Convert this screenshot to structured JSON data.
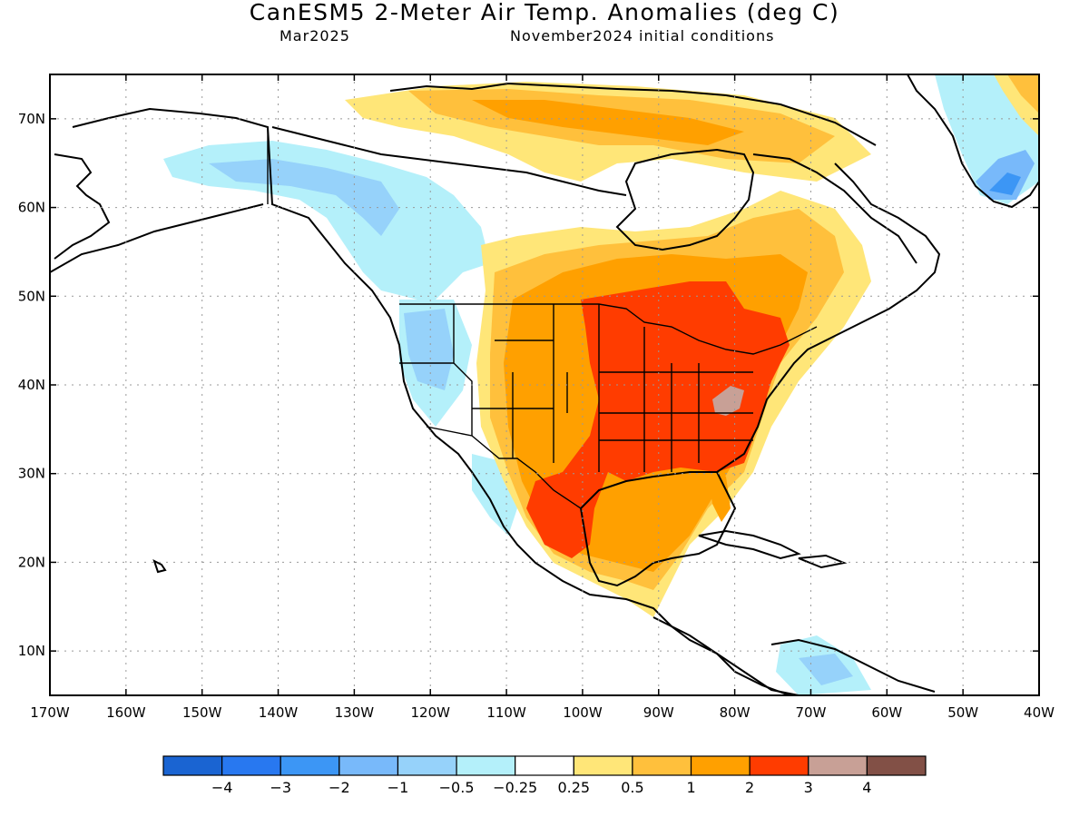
{
  "header": {
    "title": "CanESM5 2-Meter Air Temp. Anomalies (deg C)",
    "valid_month": "Mar2025",
    "initial_conditions": "November2024 initial conditions"
  },
  "map": {
    "projection": "cylindrical-equidistant",
    "lon_range": [
      -170,
      -40
    ],
    "lat_range": [
      5,
      75
    ],
    "lat_ticks": [
      {
        "value": 70,
        "label": "70N"
      },
      {
        "value": 60,
        "label": "60N"
      },
      {
        "value": 50,
        "label": "50N"
      },
      {
        "value": 40,
        "label": "40N"
      },
      {
        "value": 30,
        "label": "30N"
      },
      {
        "value": 20,
        "label": "20N"
      },
      {
        "value": 10,
        "label": "10N"
      }
    ],
    "lon_ticks": [
      {
        "value": -170,
        "label": "170W"
      },
      {
        "value": -160,
        "label": "160W"
      },
      {
        "value": -150,
        "label": "150W"
      },
      {
        "value": -140,
        "label": "140W"
      },
      {
        "value": -130,
        "label": "130W"
      },
      {
        "value": -120,
        "label": "120W"
      },
      {
        "value": -110,
        "label": "110W"
      },
      {
        "value": -100,
        "label": "100W"
      },
      {
        "value": -90,
        "label": "90W"
      },
      {
        "value": -80,
        "label": "80W"
      },
      {
        "value": -70,
        "label": "70W"
      },
      {
        "value": -60,
        "label": "60W"
      },
      {
        "value": -50,
        "label": "50W"
      },
      {
        "value": -40,
        "label": "40W"
      }
    ],
    "grid": "dotted"
  },
  "colorbar": {
    "colors": [
      "#1a64d2",
      "#2878f0",
      "#3c96f5",
      "#78b9fa",
      "#96d2fa",
      "#b4f0fa",
      "#ffffff",
      "#ffe678",
      "#ffc03c",
      "#ffa000",
      "#ff3c00",
      "#c8a096",
      "#825046"
    ],
    "labels": [
      "−4",
      "−3",
      "−2",
      "−1",
      "−0.5",
      "−0.25",
      "0.25",
      "0.5",
      "1",
      "2",
      "3",
      "4"
    ]
  }
}
